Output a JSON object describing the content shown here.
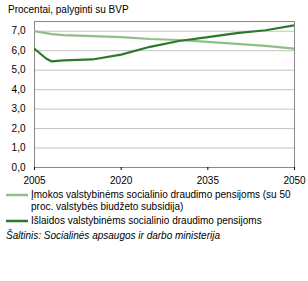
{
  "chart_data": {
    "type": "line",
    "ylabel": "Procentai, palyginti su  BVP",
    "x": [
      2005,
      2007,
      2008,
      2010,
      2015,
      2020,
      2025,
      2030,
      2035,
      2040,
      2045,
      2050
    ],
    "series": [
      {
        "name": "Įmokos valstybinėms socialinio draudimo pensijoms (su 50 proc. valstybės biudžeto subsidija)",
        "color": "#8fbf86",
        "values": [
          7.0,
          6.9,
          6.85,
          6.8,
          6.75,
          6.7,
          6.6,
          6.55,
          6.45,
          6.35,
          6.25,
          6.1
        ]
      },
      {
        "name": "Išlaidos valstybinėms socialinio draudimo pensijoms",
        "color": "#2a7a2e",
        "values": [
          6.1,
          5.6,
          5.45,
          5.5,
          5.55,
          5.8,
          6.2,
          6.5,
          6.7,
          6.9,
          7.05,
          7.3
        ]
      }
    ],
    "xlim": [
      2005,
      2050
    ],
    "xticks": [
      2005,
      2020,
      2035,
      2050
    ],
    "ylim": [
      0,
      7.5
    ],
    "yticks": [
      {
        "value": 0,
        "label": "0,0"
      },
      {
        "value": 1,
        "label": "1,0"
      },
      {
        "value": 2,
        "label": "2,0"
      },
      {
        "value": 3,
        "label": "3,0"
      },
      {
        "value": 4,
        "label": "4,0"
      },
      {
        "value": 5,
        "label": "5,0"
      },
      {
        "value": 6,
        "label": "6,0"
      },
      {
        "value": 7,
        "label": "7,0"
      }
    ],
    "grid": true,
    "legend": "bottom",
    "source": "Šaltinis: Socialinės apsaugos ir darbo ministerija"
  }
}
